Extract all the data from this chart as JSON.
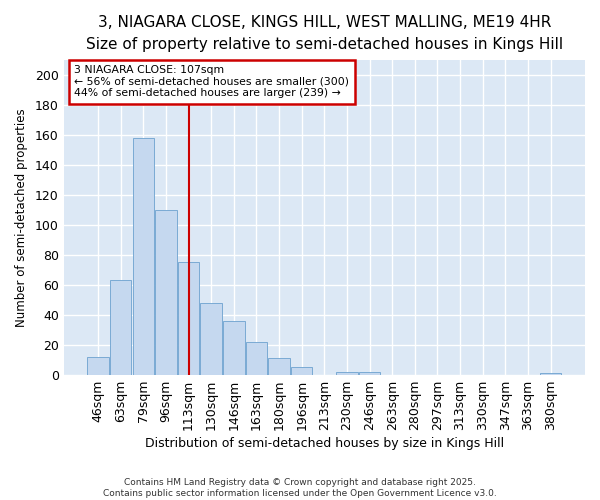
{
  "title1": "3, NIAGARA CLOSE, KINGS HILL, WEST MALLING, ME19 4HR",
  "title2": "Size of property relative to semi-detached houses in Kings Hill",
  "xlabel": "Distribution of semi-detached houses by size in Kings Hill",
  "ylabel": "Number of semi-detached properties",
  "categories": [
    "46sqm",
    "63sqm",
    "79sqm",
    "96sqm",
    "113sqm",
    "130sqm",
    "146sqm",
    "163sqm",
    "180sqm",
    "196sqm",
    "213sqm",
    "230sqm",
    "246sqm",
    "263sqm",
    "280sqm",
    "297sqm",
    "313sqm",
    "330sqm",
    "347sqm",
    "363sqm",
    "380sqm"
  ],
  "values": [
    12,
    63,
    158,
    110,
    75,
    48,
    36,
    22,
    11,
    5,
    0,
    2,
    2,
    0,
    0,
    0,
    0,
    0,
    0,
    0,
    1
  ],
  "bar_color": "#c5d8ef",
  "bar_edge_color": "#7aaad4",
  "vline_x": 4,
  "vline_color": "#cc0000",
  "annotation_title": "3 NIAGARA CLOSE: 107sqm",
  "annotation_line1": "← 56% of semi-detached houses are smaller (300)",
  "annotation_line2": "44% of semi-detached houses are larger (239) →",
  "annotation_box_color": "#ffffff",
  "annotation_box_edge": "#cc0000",
  "footer": "Contains HM Land Registry data © Crown copyright and database right 2025.\nContains public sector information licensed under the Open Government Licence v3.0.",
  "ylim": [
    0,
    210
  ],
  "yticks": [
    0,
    20,
    40,
    60,
    80,
    100,
    120,
    140,
    160,
    180,
    200
  ],
  "bg_color": "#dce8f5",
  "fig_bg_color": "#ffffff",
  "grid_color": "#ffffff",
  "title_fontsize": 11,
  "subtitle_fontsize": 10,
  "title_fontweight": "normal"
}
